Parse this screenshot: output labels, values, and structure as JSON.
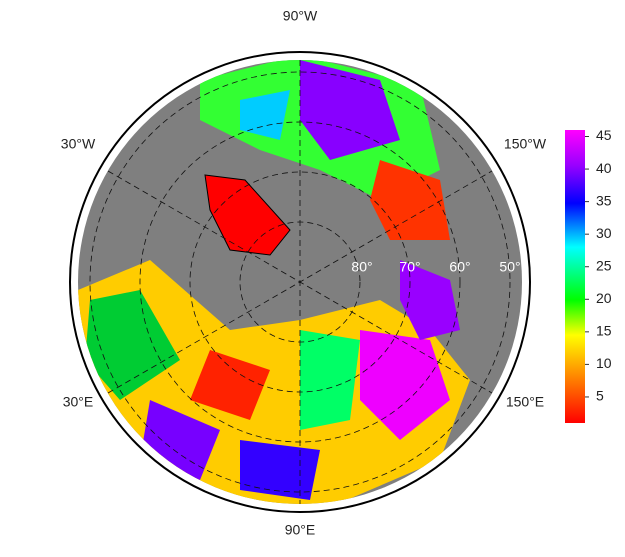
{
  "map": {
    "lon_labels": {
      "top": "90°W",
      "upper_left": "30°W",
      "upper_right": "150°W",
      "lower_left": "30°E",
      "lower_right": "150°E",
      "bottom": "90°E"
    },
    "lat_labels": [
      "80°",
      "70°",
      "60°",
      "50°"
    ]
  },
  "colorbar": {
    "range": [
      1,
      46
    ],
    "ticks": [
      5,
      10,
      15,
      20,
      25,
      30,
      35,
      40,
      45
    ]
  }
}
